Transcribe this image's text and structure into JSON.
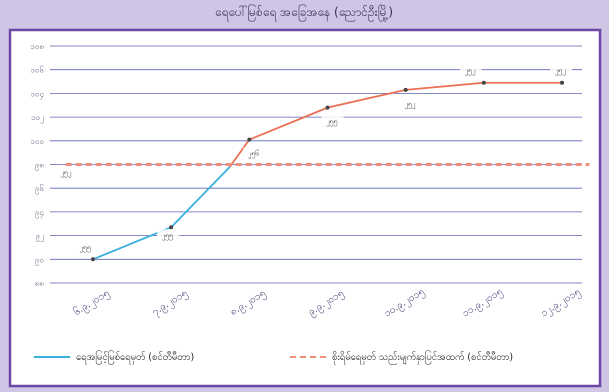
{
  "chart_data": {
    "type": "line",
    "title": "ရေပေါ်မြစ်ရေ အခြေအနေ (ညောင်ဦးမြို့)",
    "xlabel": "",
    "ylabel": "",
    "categories": [
      "၆.၉.၂၀၁၅",
      "၇.၉.၂၀၁၅",
      "၈.၉.၂၀၁၅",
      "၉.၉.၂၀၁၅",
      "၁၀.၉.၂၀၁၅",
      "၁၁.၉.၂၀၁၅",
      "၁၂.၉.၂၀၁၅"
    ],
    "y_ticks": [
      "၁၀၈",
      "၁၀၆",
      "၁၀၄",
      "၁၀၂",
      "၁၀၀",
      "၉၈",
      "၉၆",
      "၉၄",
      "၉၂",
      "၉၀",
      "၈၈"
    ],
    "series": [
      {
        "name": "ရေအမြင့်မြစ်ရေမှတ် (စင်တီမီတာ)",
        "color": "#3ab0de",
        "style": "solid",
        "points": [
          {
            "x": 0,
            "y": 90.0,
            "label": "၂၅၅"
          },
          {
            "x": 1,
            "y": 92.7,
            "label": "၂၅၅"
          },
          {
            "x": 1.75,
            "y": 97.8,
            "label": ""
          }
        ]
      },
      {
        "name": "",
        "color": "#ea7055",
        "style": "solid",
        "points": [
          {
            "x": 1.75,
            "y": 97.8,
            "label": ""
          },
          {
            "x": 2,
            "y": 100.1,
            "label": "၂၅၆"
          },
          {
            "x": 3,
            "y": 102.8,
            "label": "၂၅၅"
          },
          {
            "x": 4,
            "y": 104.3,
            "label": "၂၅၂"
          },
          {
            "x": 5,
            "y": 104.9,
            "label": "၂၅၂"
          },
          {
            "x": 6,
            "y": 104.9,
            "label": "၂၅၂"
          }
        ]
      },
      {
        "name": "စိုးရိမ်ရေမှတ် သည်းမျက်နှာပြင်အထက် (စင်တီမီတာ)",
        "color": "#f0907a",
        "style": "dashed",
        "points": [
          {
            "x": -0.35,
            "y": 98.0,
            "label": "၂၅၂"
          },
          {
            "x": 6.35,
            "y": 98.0,
            "label": ""
          }
        ]
      }
    ],
    "ylim": [
      88,
      108
    ],
    "grid": true,
    "legend": "bottom"
  }
}
